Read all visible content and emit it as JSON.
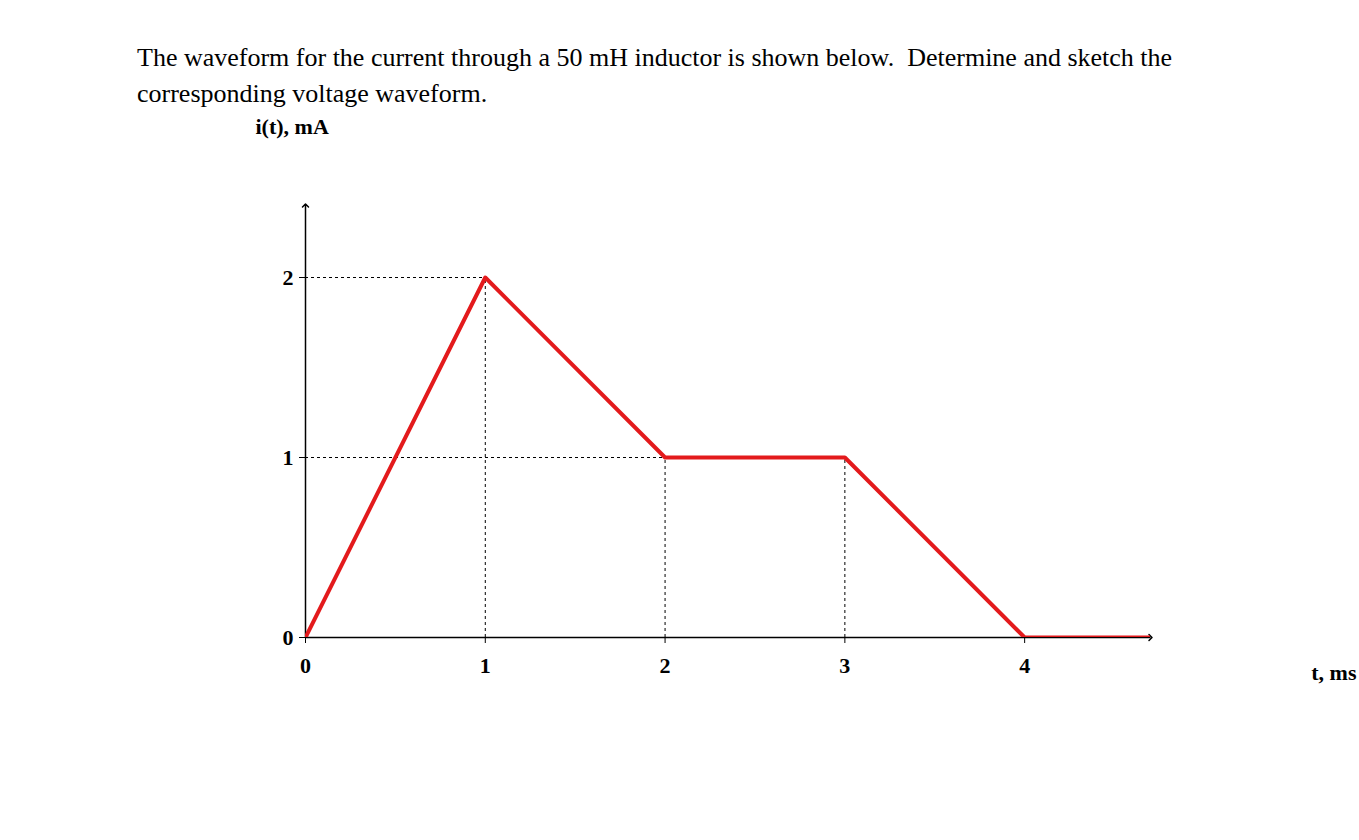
{
  "chart_data": {
    "type": "line",
    "title": "The waveform for the current through a 50 mH inductor is shown below.  Determine and sketch the corresponding voltage waveform.",
    "x_label": "t, ms",
    "y_label": "i(t), mA",
    "x": [
      0,
      1,
      2,
      3,
      4,
      4.7
    ],
    "values": [
      0,
      2,
      1,
      1,
      0,
      0
    ],
    "color": "#e31a1c",
    "xlim": [
      0,
      4.7
    ],
    "ylim": [
      0,
      2.4
    ],
    "xticks": [
      0,
      1,
      2,
      3,
      4
    ],
    "yticks": [
      0,
      1,
      2
    ]
  }
}
